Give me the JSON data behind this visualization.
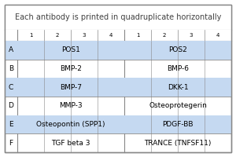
{
  "title": "Each antibody is printed in quadruplicate horizontally",
  "row_labels": [
    "A",
    "B",
    "C",
    "D",
    "E",
    "F"
  ],
  "col_numbers": [
    "1",
    "2",
    "3",
    "4",
    "1",
    "2",
    "3",
    "4"
  ],
  "cells": [
    [
      "POS1",
      "POS2"
    ],
    [
      "BMP-2",
      "BMP-6"
    ],
    [
      "BMP-7",
      "DKK-1"
    ],
    [
      "MMP-3",
      "Osteoprotegerin"
    ],
    [
      "Osteopontin (SPP1)",
      "PDGF-BB"
    ],
    [
      "TGF beta 3",
      "TRANCE (TNFSF11)"
    ]
  ],
  "shaded_rows": [
    0,
    2,
    4
  ],
  "shade_color": "#c5d9f1",
  "border_color": "#888888",
  "bg_color": "#ffffff",
  "text_color": "#000000",
  "title_color": "#404040",
  "font_size": 6.5,
  "title_font_size": 7.0
}
